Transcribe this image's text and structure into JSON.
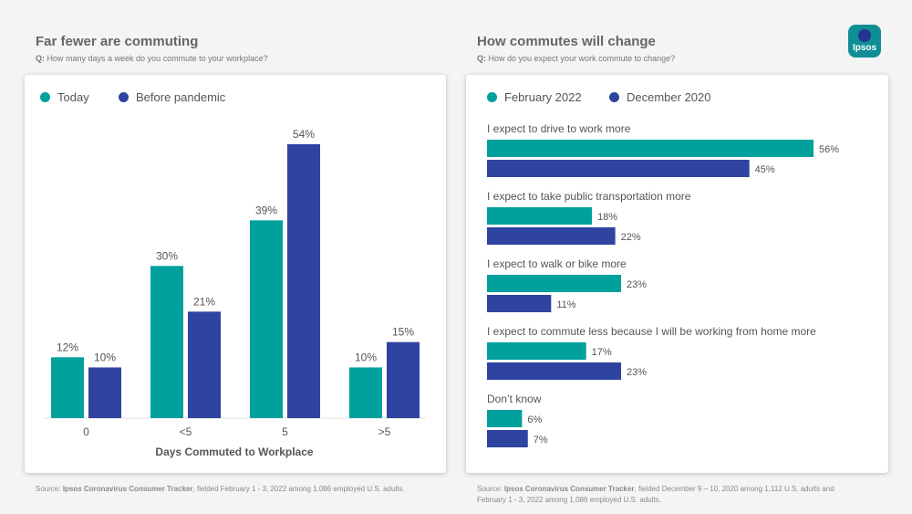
{
  "colors": {
    "teal": "#00a09d",
    "navy": "#2f43a1"
  },
  "logo": {
    "label": "Ipsos"
  },
  "left": {
    "title": "Far fewer are commuting",
    "question_prefix": "Q:",
    "question": "How many days a week do you commute to your workplace?",
    "source_prefix": "Source:",
    "source_name": "Ipsos Coronavirus Consumer Tracker",
    "source_rest": ", fielded February 1 - 3, 2022 among 1,086 employed U.S. adults."
  },
  "right": {
    "title": "How commutes will change",
    "question_prefix": "Q:",
    "question": "How do you expect your work commute to change?",
    "source_prefix": "Source:",
    "source_name": "Ipsos Coronavirus Consumer Tracker",
    "source_rest": ", fielded December 9 – 10, 2020 among 1,112 U.S. adults and",
    "source_line2": "February 1 - 3, 2022 among 1,086 employed U.S. adults."
  },
  "chart_data": [
    {
      "type": "bar",
      "title": "Far fewer are commuting",
      "xlabel": "Days Commuted to Workplace",
      "ylabel": "",
      "categories": [
        "0",
        "<5",
        "5",
        ">5"
      ],
      "series": [
        {
          "name": "Today",
          "values": [
            12,
            30,
            39,
            10
          ],
          "labels": [
            "12%",
            "30%",
            "39%",
            "10%"
          ]
        },
        {
          "name": "Before pandemic",
          "values": [
            10,
            21,
            54,
            15
          ],
          "labels": [
            "10%",
            "21%",
            "54%",
            "15%"
          ]
        }
      ],
      "ylim": [
        0,
        54
      ],
      "legend": "top-left"
    },
    {
      "type": "bar",
      "orientation": "horizontal",
      "title": "How commutes will change",
      "categories": [
        "I expect to drive to work more",
        "I expect to take public transportation more",
        "I expect to walk or bike more",
        "I expect to commute less because I will be working from home more",
        "Don’t know"
      ],
      "series": [
        {
          "name": "February 2022",
          "values": [
            56,
            18,
            23,
            17,
            6
          ],
          "labels": [
            "56%",
            "18%",
            "23%",
            "17%",
            "6%"
          ]
        },
        {
          "name": "December 2020",
          "values": [
            45,
            22,
            11,
            23,
            7
          ],
          "labels": [
            "45%",
            "22%",
            "11%",
            "23%",
            "7%"
          ]
        }
      ],
      "xlim": [
        0,
        56
      ],
      "legend": "top-left"
    }
  ]
}
